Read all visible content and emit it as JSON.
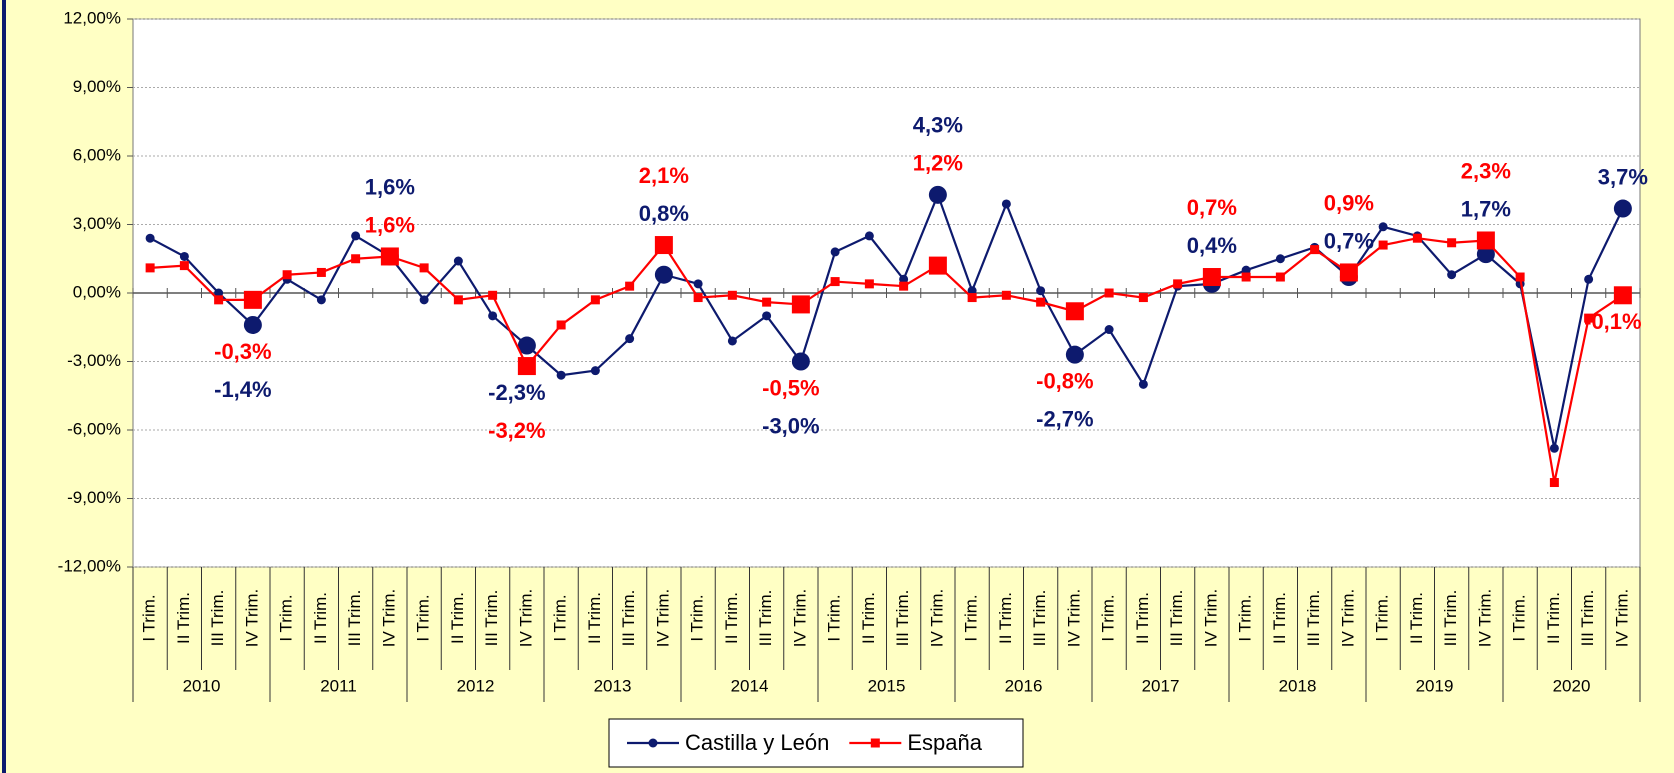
{
  "chart_data": {
    "type": "line",
    "categories": [
      "I Trim.",
      "II Trim.",
      "III Trim.",
      "IV Trim.",
      "I Trim.",
      "II Trim.",
      "III Trim.",
      "IV Trim.",
      "I Trim.",
      "II Trim.",
      "III Trim.",
      "IV Trim.",
      "I Trim.",
      "II Trim.",
      "III Trim.",
      "IV Trim.",
      "I Trim.",
      "II Trim.",
      "III Trim.",
      "IV Trim.",
      "I Trim.",
      "II Trim.",
      "III Trim.",
      "IV Trim.",
      "I Trim.",
      "II Trim.",
      "III Trim.",
      "IV Trim.",
      "I Trim.",
      "II Trim.",
      "III Trim.",
      "IV Trim.",
      "I Trim.",
      "II Trim.",
      "III Trim.",
      "IV Trim.",
      "I Trim.",
      "II Trim.",
      "III Trim.",
      "IV Trim.",
      "I Trim.",
      "II Trim.",
      "III Trim.",
      "IV Trim."
    ],
    "groups": [
      "2010",
      "2011",
      "2012",
      "2013",
      "2014",
      "2015",
      "2016",
      "2017",
      "2018",
      "2019",
      "2020"
    ],
    "series": [
      {
        "name": "Castilla y León",
        "color": "#0d1a6e",
        "values": [
          2.4,
          1.6,
          0.0,
          -1.4,
          0.6,
          -0.3,
          2.5,
          1.6,
          -0.3,
          1.4,
          -1.0,
          -2.3,
          -3.6,
          -3.4,
          -2.0,
          0.8,
          0.4,
          -2.1,
          -1.0,
          -3.0,
          1.8,
          2.5,
          0.6,
          4.3,
          0.1,
          3.9,
          0.1,
          -2.7,
          -1.6,
          -4.0,
          0.3,
          0.4,
          1.0,
          1.5,
          2.0,
          0.7,
          2.9,
          2.5,
          0.8,
          1.7,
          0.4,
          -6.8,
          0.6,
          3.7
        ],
        "value_labels": [
          null,
          null,
          null,
          "-1,4%",
          null,
          null,
          null,
          "1,6%",
          null,
          null,
          null,
          "-2,3%",
          null,
          null,
          null,
          "0,8%",
          null,
          null,
          null,
          "-3,0%",
          null,
          null,
          null,
          "4,3%",
          null,
          null,
          null,
          "-2,7%",
          null,
          null,
          null,
          "0,4%",
          null,
          null,
          null,
          "0,7%",
          null,
          null,
          null,
          "1,7%",
          null,
          null,
          null,
          "3,7%"
        ]
      },
      {
        "name": "España",
        "color": "#ff0000",
        "values": [
          1.1,
          1.2,
          -0.3,
          -0.3,
          0.8,
          0.9,
          1.5,
          1.6,
          1.1,
          -0.3,
          -0.1,
          -3.2,
          -1.4,
          -0.3,
          0.3,
          2.1,
          -0.2,
          -0.1,
          -0.4,
          -0.5,
          0.5,
          0.4,
          0.3,
          1.2,
          -0.2,
          -0.1,
          -0.4,
          -0.8,
          0.0,
          -0.2,
          0.4,
          0.7,
          0.7,
          0.7,
          1.9,
          0.9,
          2.1,
          2.4,
          2.2,
          2.3,
          0.7,
          -8.3,
          -1.1,
          -0.1
        ],
        "value_labels": [
          null,
          null,
          null,
          "-0,3%",
          null,
          null,
          null,
          "1,6%",
          null,
          null,
          null,
          "-3,2%",
          null,
          null,
          null,
          "2,1%",
          null,
          null,
          null,
          "-0,5%",
          null,
          null,
          null,
          "1,2%",
          null,
          null,
          null,
          "-0,8%",
          null,
          null,
          null,
          "0,7%",
          null,
          null,
          null,
          "0,9%",
          null,
          null,
          null,
          "2,3%",
          null,
          null,
          null,
          "-0,1%"
        ]
      }
    ],
    "ylim": [
      -12,
      12
    ],
    "yticks": [
      {
        "value": -12,
        "label": "-12,00%"
      },
      {
        "value": -9,
        "label": "-9,00%"
      },
      {
        "value": -6,
        "label": "-6,00%"
      },
      {
        "value": -3,
        "label": "-3,00%"
      },
      {
        "value": 0,
        "label": "0,00%"
      },
      {
        "value": 3,
        "label": "3,00%"
      },
      {
        "value": 6,
        "label": "6,00%"
      },
      {
        "value": 9,
        "label": "9,00%"
      },
      {
        "value": 12,
        "label": "12,00%"
      }
    ],
    "grid": true,
    "legend": "bottom"
  }
}
